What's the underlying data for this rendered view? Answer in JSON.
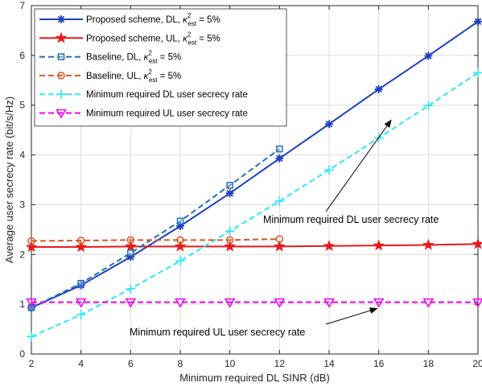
{
  "chart_data": {
    "type": "line",
    "xlabel": "Minimum required DL SINR (dB)",
    "ylabel": "Average user secrecy rate (bit/s/Hz)",
    "xlim": [
      2,
      20
    ],
    "ylim": [
      0,
      7
    ],
    "xticks": [
      2,
      4,
      6,
      8,
      10,
      12,
      14,
      16,
      18,
      20
    ],
    "yticks": [
      0,
      1,
      2,
      3,
      4,
      5,
      6,
      7
    ],
    "grid": true,
    "legend_position": "top-left",
    "series": [
      {
        "name": "Proposed scheme, DL, κ²est = 5%",
        "legend_main": "Proposed scheme, DL, ",
        "legend_tail": " = 5%",
        "color": "#1f3fbf",
        "dash": "solid",
        "marker": "asterisk",
        "x": [
          2,
          4,
          6,
          8,
          10,
          12,
          14,
          16,
          18,
          20
        ],
        "y": [
          0.93,
          1.38,
          1.95,
          2.57,
          3.23,
          3.93,
          4.62,
          5.32,
          5.99,
          6.68
        ]
      },
      {
        "name": "Proposed scheme, UL, κ²est = 5%",
        "legend_main": "Proposed scheme, UL, ",
        "legend_tail": " = 5%",
        "color": "#e8191c",
        "dash": "solid",
        "marker": "star",
        "x": [
          2,
          4,
          6,
          8,
          10,
          12,
          14,
          16,
          18,
          20
        ],
        "y": [
          2.15,
          2.15,
          2.16,
          2.16,
          2.16,
          2.16,
          2.17,
          2.18,
          2.19,
          2.21
        ]
      },
      {
        "name": "Baseline, DL, κ²est = 5%",
        "legend_main": "Baseline, DL, ",
        "legend_tail": " = 5%",
        "color": "#1f6fb4",
        "dash": "dashed",
        "marker": "square",
        "x": [
          2,
          4,
          6,
          8,
          10,
          12
        ],
        "y": [
          0.93,
          1.42,
          2.03,
          2.67,
          3.39,
          4.12
        ]
      },
      {
        "name": "Baseline, UL, κ²est = 5%",
        "legend_main": "Baseline, UL, ",
        "legend_tail": " = 5%",
        "color": "#d9541e",
        "dash": "dashed",
        "marker": "circle",
        "x": [
          2,
          4,
          6,
          8,
          10,
          12
        ],
        "y": [
          2.27,
          2.28,
          2.29,
          2.29,
          2.29,
          2.31
        ]
      },
      {
        "name": "Minimum required DL user secrecy rate",
        "legend_main": "Minimum required DL user secrecy rate",
        "legend_tail": "",
        "color": "#33e6f0",
        "dash": "dashed",
        "marker": "plus",
        "x": [
          2,
          4,
          6,
          8,
          10,
          12,
          14,
          16,
          18,
          20
        ],
        "y": [
          0.35,
          0.79,
          1.31,
          1.87,
          2.47,
          3.07,
          3.7,
          4.34,
          4.99,
          5.65
        ]
      },
      {
        "name": "Minimum required UL user secrecy rate",
        "legend_main": "Minimum required UL user secrecy rate",
        "legend_tail": "",
        "color": "#ee00ee",
        "dash": "dashed",
        "marker": "triangle-down",
        "x": [
          2,
          4,
          6,
          8,
          10,
          12,
          14,
          16,
          18,
          20
        ],
        "y": [
          1.04,
          1.04,
          1.04,
          1.04,
          1.04,
          1.04,
          1.04,
          1.04,
          1.04,
          1.04
        ]
      }
    ],
    "legend_symbol": {
      "base": "κ",
      "sup": "2",
      "sub": "est"
    },
    "annotations": [
      {
        "text": "Minimum required DL user secrecy rate",
        "target": [
          16.5,
          4.7
        ]
      },
      {
        "text": "Minimum required UL user secrecy rate",
        "target": [
          16.0,
          1.06
        ]
      }
    ]
  }
}
